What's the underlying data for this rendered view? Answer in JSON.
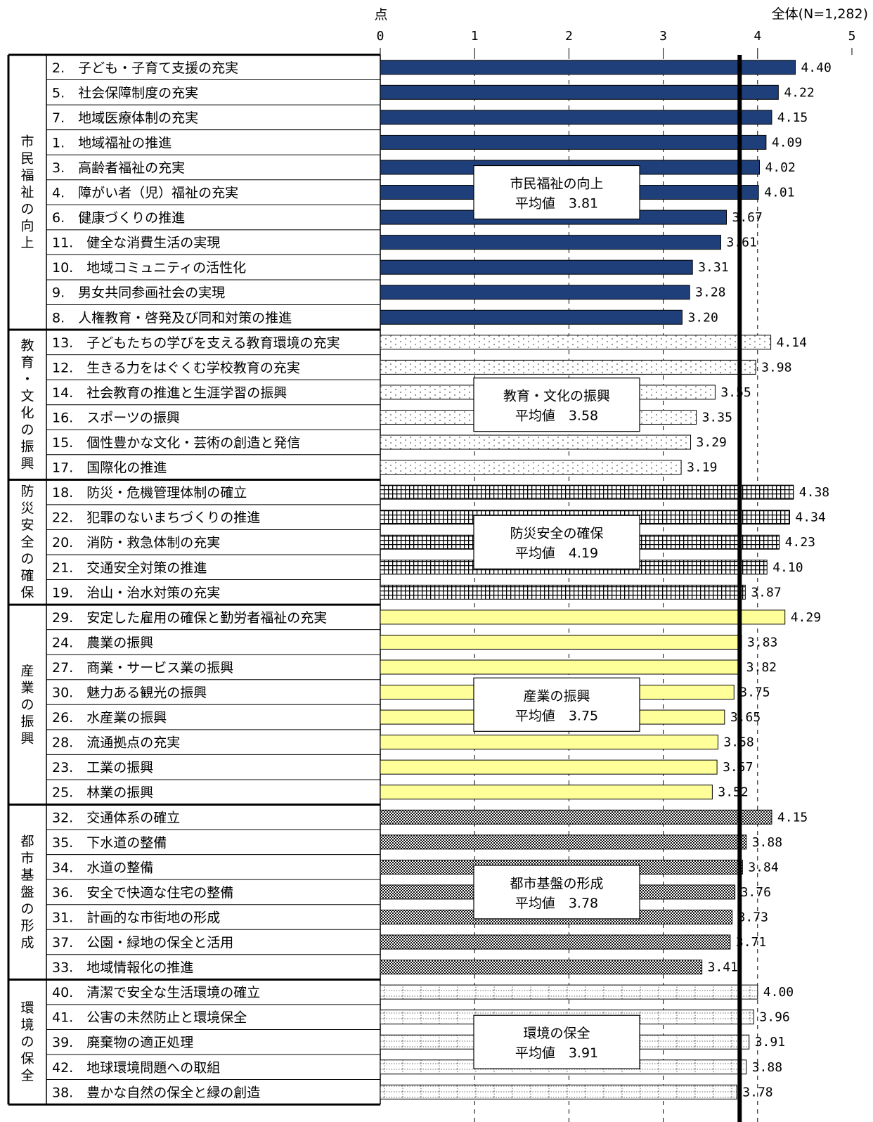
{
  "chart_data": {
    "type": "bar",
    "orientation": "horizontal",
    "unit_label": "点",
    "overall_label": "全体(N=1,282)",
    "overall_value": 3.81,
    "xlim": [
      0,
      5
    ],
    "x_ticks": [
      "0",
      "1",
      "2",
      "3",
      "4",
      "5"
    ],
    "grid": "dashed vertical",
    "groups": [
      {
        "name": "市民福祉の向上",
        "average_label": "平均値　3.81",
        "pattern": "solid-navy",
        "color": "#1f3f7a",
        "items": [
          {
            "label": "2.　子ども・子育て支援の充実",
            "value": 4.4,
            "value_label": "4.40"
          },
          {
            "label": "5.　社会保障制度の充実",
            "value": 4.22,
            "value_label": "4.22"
          },
          {
            "label": "7.　地域医療体制の充実",
            "value": 4.15,
            "value_label": "4.15"
          },
          {
            "label": "1.　地域福祉の推進",
            "value": 4.09,
            "value_label": "4.09"
          },
          {
            "label": "3.　高齢者福祉の充実",
            "value": 4.02,
            "value_label": "4.02"
          },
          {
            "label": "4.　障がい者（児）福祉の充実",
            "value": 4.01,
            "value_label": "4.01"
          },
          {
            "label": "6.　健康づくりの推進",
            "value": 3.67,
            "value_label": "3.67"
          },
          {
            "label": "11.　健全な消費生活の実現",
            "value": 3.61,
            "value_label": "3.61"
          },
          {
            "label": "10.　地域コミュニティの活性化",
            "value": 3.31,
            "value_label": "3.31"
          },
          {
            "label": "9.　男女共同参画社会の実現",
            "value": 3.28,
            "value_label": "3.28"
          },
          {
            "label": "8.　人権教育・啓発及び同和対策の推進",
            "value": 3.2,
            "value_label": "3.20"
          }
        ]
      },
      {
        "name": "教育・文化の振興",
        "average_label": "平均値　3.58",
        "pattern": "dots",
        "color": "#ffffff",
        "items": [
          {
            "label": "13.　子どもたちの学びを支える教育環境の充実",
            "value": 4.14,
            "value_label": "4.14"
          },
          {
            "label": "12.　生きる力をはぐくむ学校教育の充実",
            "value": 3.98,
            "value_label": "3.98"
          },
          {
            "label": "14.　社会教育の推進と生涯学習の振興",
            "value": 3.55,
            "value_label": "3.55"
          },
          {
            "label": "16.　スポーツの振興",
            "value": 3.35,
            "value_label": "3.35"
          },
          {
            "label": "15.　個性豊かな文化・芸術の創造と発信",
            "value": 3.29,
            "value_label": "3.29"
          },
          {
            "label": "17.　国際化の推進",
            "value": 3.19,
            "value_label": "3.19"
          }
        ]
      },
      {
        "name": "防災安全の確保",
        "average_label": "平均値　4.19",
        "pattern": "grid",
        "color": "#000000",
        "items": [
          {
            "label": "18.　防災・危機管理体制の確立",
            "value": 4.38,
            "value_label": "4.38"
          },
          {
            "label": "22.　犯罪のないまちづくりの推進",
            "value": 4.34,
            "value_label": "4.34"
          },
          {
            "label": "20.　消防・救急体制の充実",
            "value": 4.23,
            "value_label": "4.23"
          },
          {
            "label": "21.　交通安全対策の推進",
            "value": 4.1,
            "value_label": "4.10"
          },
          {
            "label": "19.　治山・治水対策の充実",
            "value": 3.87,
            "value_label": "3.87"
          }
        ]
      },
      {
        "name": "産業の振興",
        "average_label": "平均値　3.75",
        "pattern": "solid-yellow",
        "color": "#ffff99",
        "items": [
          {
            "label": "29.　安定した雇用の確保と勤労者福祉の充実",
            "value": 4.29,
            "value_label": "4.29"
          },
          {
            "label": "24.　農業の振興",
            "value": 3.83,
            "value_label": "3.83"
          },
          {
            "label": "27.　商業・サービス業の振興",
            "value": 3.82,
            "value_label": "3.82"
          },
          {
            "label": "30.　魅力ある観光の振興",
            "value": 3.75,
            "value_label": "3.75"
          },
          {
            "label": "26.　水産業の振興",
            "value": 3.65,
            "value_label": "3.65"
          },
          {
            "label": "28.　流通拠点の充実",
            "value": 3.58,
            "value_label": "3.58"
          },
          {
            "label": "23.　工業の振興",
            "value": 3.57,
            "value_label": "3.57"
          },
          {
            "label": "25.　林業の振興",
            "value": 3.52,
            "value_label": "3.52"
          }
        ]
      },
      {
        "name": "都市基盤の形成",
        "average_label": "平均値　3.78",
        "pattern": "checker",
        "color": "#000000",
        "items": [
          {
            "label": "32.　交通体系の確立",
            "value": 4.15,
            "value_label": "4.15"
          },
          {
            "label": "35.　下水道の整備",
            "value": 3.88,
            "value_label": "3.88"
          },
          {
            "label": "34.　水道の整備",
            "value": 3.84,
            "value_label": "3.84"
          },
          {
            "label": "36.　安全で快適な住宅の整備",
            "value": 3.76,
            "value_label": "3.76"
          },
          {
            "label": "31.　計画的な市街地の形成",
            "value": 3.73,
            "value_label": "3.73"
          },
          {
            "label": "37.　公園・緑地の保全と活用",
            "value": 3.71,
            "value_label": "3.71"
          },
          {
            "label": "33.　地域情報化の推進",
            "value": 3.41,
            "value_label": "3.41"
          }
        ]
      },
      {
        "name": "環境の保全",
        "average_label": "平均値　3.91",
        "pattern": "dotted-lines",
        "color": "#ffffff",
        "items": [
          {
            "label": "40.　清潔で安全な生活環境の確立",
            "value": 4.0,
            "value_label": "4.00"
          },
          {
            "label": "41.　公害の未然防止と環境保全",
            "value": 3.96,
            "value_label": "3.96"
          },
          {
            "label": "39.　廃棄物の適正処理",
            "value": 3.91,
            "value_label": "3.91"
          },
          {
            "label": "42.　地球環境問題への取組",
            "value": 3.88,
            "value_label": "3.88"
          },
          {
            "label": "38.　豊かな自然の保全と緑の創造",
            "value": 3.78,
            "value_label": "3.78"
          }
        ]
      }
    ]
  }
}
